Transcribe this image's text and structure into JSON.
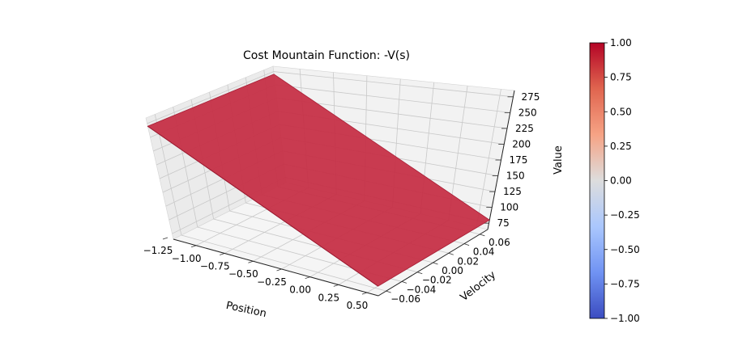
{
  "chart_data": {
    "type": "surface3d",
    "title": "Cost Mountain Function: -V(s)",
    "xlabel": "Position",
    "ylabel": "Velocity",
    "zlabel": "Value",
    "x_ticks": [
      "−1.25",
      "−1.00",
      "−0.75",
      "−0.50",
      "−0.25",
      "0.00",
      "0.25",
      "0.50"
    ],
    "y_ticks": [
      "−0.06",
      "−0.04",
      "−0.02",
      "0.00",
      "0.02",
      "0.04",
      "0.06"
    ],
    "z_ticks": [
      "75",
      "100",
      "125",
      "150",
      "175",
      "200",
      "225",
      "250",
      "275"
    ],
    "xlim": [
      -1.2,
      0.6
    ],
    "ylim": [
      -0.07,
      0.07
    ],
    "zlim": [
      65,
      285
    ],
    "surface_corners": [
      {
        "x": -1.2,
        "y": -0.07,
        "z": 270
      },
      {
        "x": -1.2,
        "y": 0.07,
        "z": 270
      },
      {
        "x": 0.6,
        "y": -0.07,
        "z": 80
      },
      {
        "x": 0.6,
        "y": 0.07,
        "z": 80
      }
    ],
    "surface_color": "#c63047",
    "grid": true,
    "colorbar": {
      "range": [
        -1.0,
        1.0
      ],
      "ticks": [
        "−1.00",
        "−0.75",
        "−0.50",
        "−0.25",
        "0.00",
        "0.25",
        "0.50",
        "0.75",
        "1.00"
      ],
      "colormap": "coolwarm",
      "colors": [
        "#3b4cc0",
        "#7093f3",
        "#aac7fd",
        "#dddddd",
        "#f6a385",
        "#e0654f",
        "#b40426"
      ]
    }
  }
}
